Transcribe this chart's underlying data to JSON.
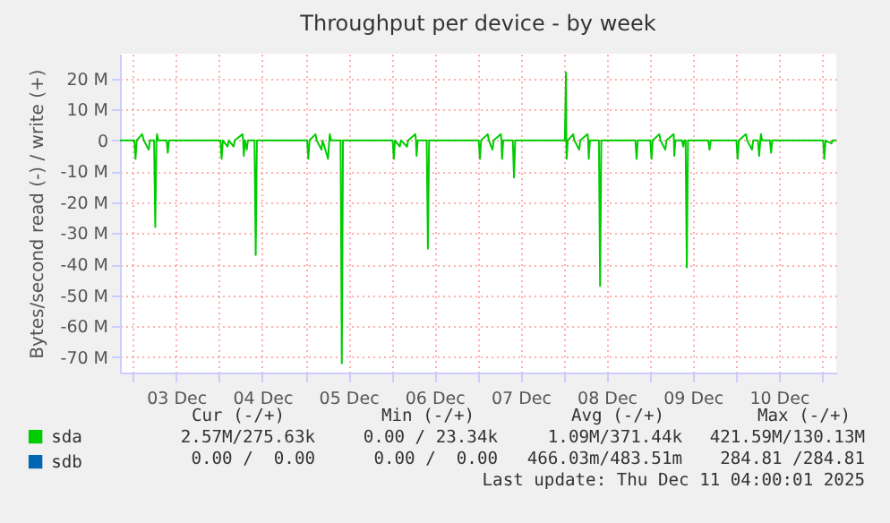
{
  "chart_data": {
    "type": "line",
    "title": "Throughput per device - by week",
    "ylabel": "Bytes/second read (-) / write (+)",
    "xlim": [
      "2025-12-02T20:20",
      "2025-12-11T04:00"
    ],
    "xticks": [
      {
        "value": "2025-12-03T00:00",
        "label": null
      },
      {
        "value": "2025-12-03T12:00",
        "label": "03 Dec"
      },
      {
        "value": "2025-12-04T00:00",
        "label": null
      },
      {
        "value": "2025-12-04T12:00",
        "label": "04 Dec"
      },
      {
        "value": "2025-12-05T00:00",
        "label": null
      },
      {
        "value": "2025-12-05T12:00",
        "label": "05 Dec"
      },
      {
        "value": "2025-12-06T00:00",
        "label": null
      },
      {
        "value": "2025-12-06T12:00",
        "label": "06 Dec"
      },
      {
        "value": "2025-12-07T00:00",
        "label": null
      },
      {
        "value": "2025-12-07T12:00",
        "label": "07 Dec"
      },
      {
        "value": "2025-12-08T00:00",
        "label": null
      },
      {
        "value": "2025-12-08T12:00",
        "label": "08 Dec"
      },
      {
        "value": "2025-12-09T00:00",
        "label": null
      },
      {
        "value": "2025-12-09T12:00",
        "label": "09 Dec"
      },
      {
        "value": "2025-12-10T00:00",
        "label": null
      },
      {
        "value": "2025-12-10T12:00",
        "label": "10 Dec"
      },
      {
        "value": "2025-12-11T00:00",
        "label": null
      }
    ],
    "ylim": [
      -75,
      28
    ],
    "yticks": [
      {
        "value": 20,
        "label": "20 M"
      },
      {
        "value": 10,
        "label": "10 M"
      },
      0,
      {
        "value": -10,
        "label": "-10 M"
      },
      {
        "value": -20,
        "label": "-20 M"
      },
      {
        "value": -30,
        "label": "-30 M"
      },
      {
        "value": -40,
        "label": "-40 M"
      },
      {
        "value": -50,
        "label": "-50 M"
      },
      {
        "value": -60,
        "label": "-60 M"
      },
      {
        "value": -70,
        "label": "-70 M"
      }
    ],
    "grid": true,
    "legend": "bottom left",
    "series": [
      {
        "name": "sda",
        "color": "#00cc00",
        "x": [
          "2025-12-02T20:20",
          "2025-12-03T00:20",
          "2025-12-03T00:40",
          "2025-12-03T01:00",
          "2025-12-03T02:30",
          "2025-12-03T03:00",
          "2025-12-03T04:20",
          "2025-12-03T04:40",
          "2025-12-03T05:50",
          "2025-12-03T06:10",
          "2025-12-03T06:30",
          "2025-12-03T06:40",
          "2025-12-03T07:00",
          "2025-12-03T09:20",
          "2025-12-03T09:40",
          "2025-12-03T10:00",
          "2025-12-04T00:20",
          "2025-12-04T00:40",
          "2025-12-04T01:00",
          "2025-12-04T02:20",
          "2025-12-04T02:40",
          "2025-12-04T04:00",
          "2025-12-04T04:20",
          "2025-12-04T06:30",
          "2025-12-04T06:40",
          "2025-12-04T06:50",
          "2025-12-04T07:10",
          "2025-12-04T07:40",
          "2025-12-04T08:00",
          "2025-12-04T09:50",
          "2025-12-04T10:10",
          "2025-12-04T10:30",
          "2025-12-05T00:30",
          "2025-12-05T00:50",
          "2025-12-05T01:10",
          "2025-12-05T02:50",
          "2025-12-05T03:10",
          "2025-12-05T04:30",
          "2025-12-05T04:50",
          "2025-12-05T06:20",
          "2025-12-05T06:40",
          "2025-12-05T06:50",
          "2025-12-05T07:10",
          "2025-12-05T09:50",
          "2025-12-05T10:10",
          "2025-12-05T10:30",
          "2025-12-06T00:20",
          "2025-12-06T00:40",
          "2025-12-06T01:00",
          "2025-12-06T02:20",
          "2025-12-06T02:40",
          "2025-12-06T04:20",
          "2025-12-06T04:40",
          "2025-12-06T06:40",
          "2025-12-06T06:50",
          "2025-12-06T07:00",
          "2025-12-06T07:20",
          "2025-12-06T09:50",
          "2025-12-06T10:10",
          "2025-12-06T10:30",
          "2025-12-07T00:20",
          "2025-12-07T00:40",
          "2025-12-07T01:00",
          "2025-12-07T02:50",
          "2025-12-07T03:10",
          "2025-12-07T04:10",
          "2025-12-07T04:30",
          "2025-12-07T06:30",
          "2025-12-07T06:40",
          "2025-12-07T06:50",
          "2025-12-07T07:10",
          "2025-12-07T09:50",
          "2025-12-07T10:10",
          "2025-12-07T10:30",
          "2025-12-08T00:20",
          "2025-12-08T00:40",
          "2025-12-08T00:45",
          "2025-12-08T00:50",
          "2025-12-08T01:10",
          "2025-12-08T02:40",
          "2025-12-08T03:00",
          "2025-12-08T04:20",
          "2025-12-08T04:40",
          "2025-12-08T06:40",
          "2025-12-08T06:50",
          "2025-12-08T07:00",
          "2025-12-08T07:20",
          "2025-12-08T09:50",
          "2025-12-08T10:10",
          "2025-12-08T10:30",
          "2025-12-08T20:00",
          "2025-12-08T20:20",
          "2025-12-08T20:40",
          "2025-12-09T00:10",
          "2025-12-09T00:30",
          "2025-12-09T00:50",
          "2025-12-09T02:40",
          "2025-12-09T03:00",
          "2025-12-09T04:20",
          "2025-12-09T04:40",
          "2025-12-09T06:40",
          "2025-12-09T06:45",
          "2025-12-09T06:50",
          "2025-12-09T07:10",
          "2025-12-09T09:00",
          "2025-12-09T09:20",
          "2025-12-09T09:40",
          "2025-12-09T10:00",
          "2025-12-09T10:20",
          "2025-12-09T10:40",
          "2025-12-09T16:20",
          "2025-12-09T16:40",
          "2025-12-09T17:00",
          "2025-12-10T00:10",
          "2025-12-10T00:30",
          "2025-12-10T00:50",
          "2025-12-10T02:50",
          "2025-12-10T03:10",
          "2025-12-10T04:30",
          "2025-12-10T04:50",
          "2025-12-10T06:10",
          "2025-12-10T06:30",
          "2025-12-10T06:50",
          "2025-12-10T07:00",
          "2025-12-10T07:20",
          "2025-12-10T09:30",
          "2025-12-10T09:50",
          "2025-12-10T10:10",
          "2025-12-11T00:20",
          "2025-12-11T00:40",
          "2025-12-11T01:00",
          "2025-12-11T02:40",
          "2025-12-11T03:00",
          "2025-12-11T04:00"
        ],
        "values": [
          0,
          0,
          -6,
          0,
          2,
          0,
          -3,
          0,
          0,
          -28,
          0,
          2,
          0,
          0,
          -4,
          0,
          0,
          -6,
          0,
          -2,
          0,
          -2,
          0,
          2,
          0,
          -5,
          0,
          -3,
          0,
          0,
          -37,
          0,
          0,
          -6,
          0,
          2,
          0,
          -3,
          0,
          -6,
          0,
          2,
          0,
          0,
          -72,
          0,
          0,
          -6,
          0,
          -2,
          0,
          -2,
          0,
          2,
          0,
          -5,
          0,
          0,
          -35,
          0,
          0,
          -6,
          0,
          2,
          0,
          -3,
          0,
          2,
          0,
          -6,
          0,
          0,
          -12,
          0,
          0,
          22,
          0,
          -6,
          0,
          2,
          0,
          -3,
          0,
          2,
          0,
          -6,
          0,
          0,
          -47,
          0,
          0,
          -6,
          0,
          0,
          -6,
          0,
          2,
          0,
          -3,
          0,
          2,
          0,
          -5,
          0,
          0,
          -2,
          0,
          0,
          -41,
          0,
          0,
          -3,
          0,
          0,
          -6,
          0,
          2,
          0,
          -3,
          0,
          0,
          -5,
          0,
          2,
          0,
          0,
          -4,
          0,
          0,
          -6,
          0,
          -1,
          0,
          0
        ]
      },
      {
        "name": "sdb",
        "color": "#0066b3"
      }
    ],
    "annotations": [
      "Cur (-/+)",
      "Min (-/+)",
      "Avg (-/+)",
      "Max (-/+)",
      "2.57M/275.63k",
      "0.00 / 23.34k",
      "1.09M/371.44k",
      "421.59M/130.13M",
      "0.00 /  0.00",
      "0.00 /  0.00",
      "466.03m/483.51m",
      "284.81 /284.81",
      "Last update: Thu Dec 11 04:00:01 2025"
    ]
  }
}
